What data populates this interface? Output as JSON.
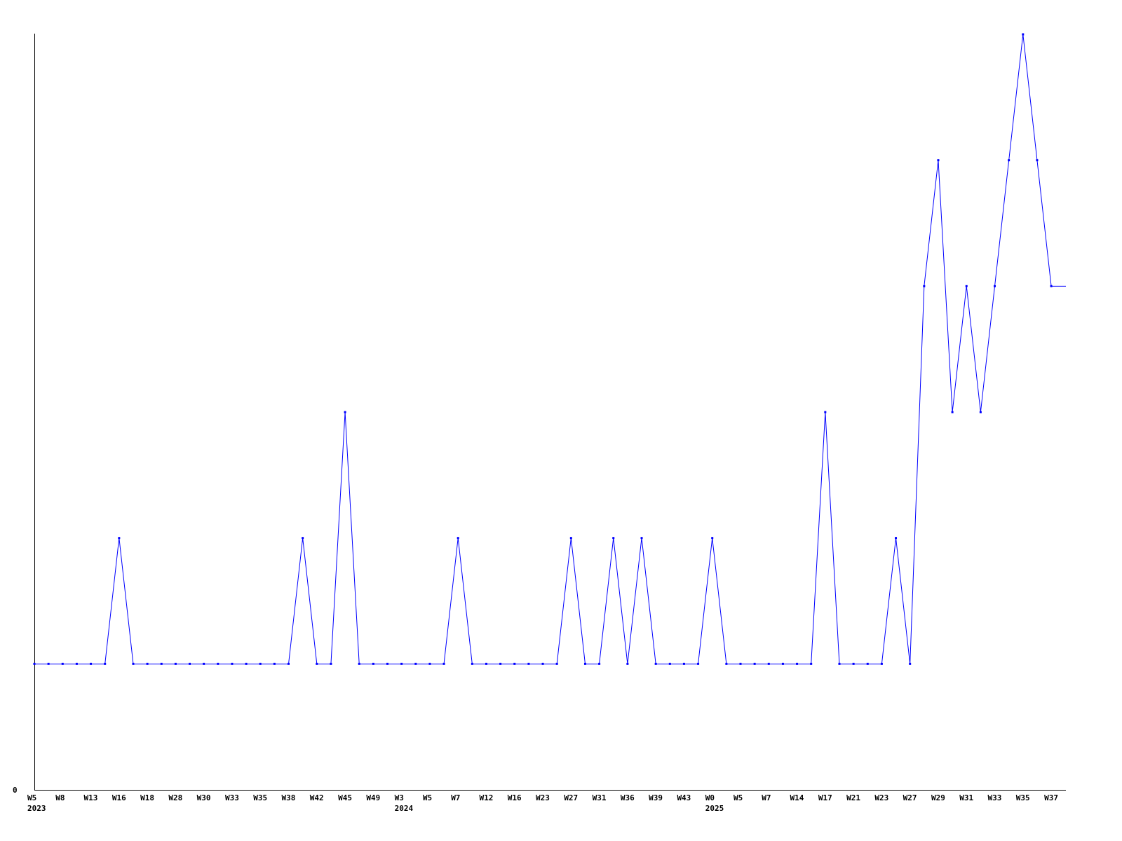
{
  "chart_data": {
    "type": "line",
    "title": "",
    "xlabel": "",
    "ylabel": "",
    "ylim": [
      0,
      6
    ],
    "y_tick_labels": [
      "0"
    ],
    "grid": false,
    "line_color": "#0000ff",
    "x_tick_labels": [
      "W5",
      "W8",
      "W13",
      "W16",
      "W18",
      "W28",
      "W30",
      "W33",
      "W35",
      "W38",
      "W42",
      "W45",
      "W49",
      "W3",
      "W5",
      "W7",
      "W12",
      "W16",
      "W23",
      "W27",
      "W31",
      "W36",
      "W39",
      "W43",
      "W0",
      "W5",
      "W7",
      "W14",
      "W17",
      "W21",
      "W23",
      "W27",
      "W29",
      "W31",
      "W33",
      "W35",
      "W37"
    ],
    "year_labels": [
      {
        "label": "2023",
        "tick": 0
      },
      {
        "label": "2024",
        "tick": 13
      },
      {
        "label": "2025",
        "tick": 24
      }
    ],
    "values": [
      1,
      1,
      1,
      1,
      1,
      1,
      2,
      1,
      1,
      1,
      1,
      1,
      1,
      1,
      1,
      1,
      1,
      1,
      1,
      2,
      1,
      1,
      3,
      1,
      1,
      1,
      1,
      1,
      1,
      1,
      2,
      1,
      1,
      1,
      1,
      1,
      1,
      1,
      2,
      1,
      1,
      2,
      1,
      2,
      1,
      1,
      1,
      1,
      2,
      1,
      1,
      1,
      1,
      1,
      1,
      1,
      3,
      1,
      1,
      1,
      1,
      2,
      1,
      4,
      5,
      3,
      4,
      3,
      4,
      5,
      6,
      5,
      4
    ]
  }
}
